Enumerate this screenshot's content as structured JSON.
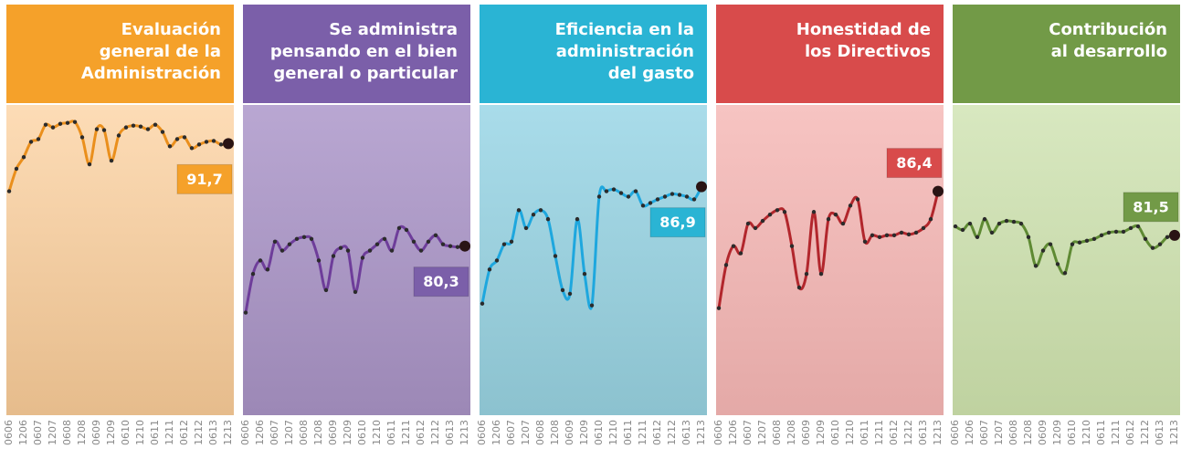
{
  "chart_data": [
    {
      "type": "line",
      "title": [
        "Evaluación",
        "general de la",
        "Administración"
      ],
      "categories": [
        "0606",
        null,
        "1206",
        null,
        "0607",
        null,
        "1207",
        null,
        "0608",
        null,
        "1208",
        null,
        "0609",
        null,
        "1209",
        null,
        "0610",
        null,
        "1210",
        null,
        "0611",
        null,
        "1211",
        null,
        "0612",
        null,
        "1212",
        null,
        "0613",
        null,
        "1213"
      ],
      "values": [
        86.4,
        88.9,
        90.2,
        91.9,
        92.2,
        93.8,
        93.5,
        93.9,
        94.0,
        94.1,
        92.4,
        89.4,
        93.3,
        93.2,
        89.8,
        92.6,
        93.5,
        93.7,
        93.6,
        93.3,
        93.8,
        93.0,
        91.4,
        92.2,
        92.4,
        91.2,
        91.6,
        91.9,
        92.0,
        91.6,
        91.7
      ],
      "value_labels": [
        null,
        null,
        null,
        null,
        null,
        null,
        null,
        null,
        null,
        null,
        null,
        null,
        null,
        null,
        null,
        null,
        null,
        null,
        null,
        null,
        null,
        null,
        null,
        null,
        null,
        null,
        null,
        null,
        null,
        null,
        "91,7"
      ],
      "color": "#ea8f1c",
      "header_color": "#f5a12a",
      "body_colors": [
        "#fddcb6",
        "#e6bc8c"
      ],
      "ylim": [
        62,
        96
      ]
    },
    {
      "type": "line",
      "title": [
        "Se administra",
        "pensando en el bien",
        "general o particular"
      ],
      "categories": [
        "0606",
        null,
        "1206",
        null,
        "0607",
        null,
        "1207",
        null,
        "0608",
        null,
        "1208",
        null,
        "0609",
        null,
        "1209",
        null,
        "0610",
        null,
        "1210",
        null,
        "0611",
        null,
        "1211",
        null,
        "0612",
        null,
        "1212",
        null,
        "0613",
        null,
        "1213"
      ],
      "values": [
        72.9,
        77.2,
        78.7,
        77.7,
        80.8,
        79.8,
        80.5,
        81.1,
        81.3,
        81.1,
        78.7,
        75.4,
        79.2,
        80.1,
        79.8,
        75.2,
        79.0,
        79.8,
        80.5,
        81.1,
        79.8,
        82.3,
        82.1,
        80.8,
        79.8,
        80.8,
        81.5,
        80.5,
        80.3,
        80.2,
        80.3
      ],
      "value_labels": [
        null,
        null,
        null,
        null,
        null,
        null,
        null,
        null,
        null,
        null,
        null,
        null,
        null,
        null,
        null,
        null,
        null,
        null,
        null,
        null,
        null,
        null,
        null,
        null,
        null,
        null,
        null,
        null,
        null,
        null,
        "80,3"
      ],
      "color": "#6e3d9a",
      "header_color": "#7b5fa9",
      "body_colors": [
        "#b9a7d2",
        "#9c88b6"
      ],
      "ylim": [
        62,
        96
      ]
    },
    {
      "type": "line",
      "title": [
        "Eficiencia en la",
        "administración",
        "del gasto"
      ],
      "categories": [
        "0606",
        null,
        "1206",
        null,
        "0607",
        null,
        "1207",
        null,
        "0608",
        null,
        "1208",
        null,
        "0609",
        null,
        "1209",
        null,
        "0610",
        null,
        "1210",
        null,
        "0611",
        null,
        "1211",
        null,
        "0612",
        null,
        "1212",
        null,
        "0613",
        null,
        "1213"
      ],
      "values": [
        73.9,
        77.7,
        78.7,
        80.5,
        80.8,
        84.3,
        82.3,
        83.8,
        84.3,
        83.3,
        79.2,
        75.4,
        75.0,
        83.3,
        77.2,
        73.7,
        85.8,
        86.4,
        86.6,
        86.2,
        85.8,
        86.4,
        84.8,
        85.1,
        85.5,
        85.8,
        86.1,
        86.0,
        85.8,
        85.5,
        86.9
      ],
      "value_labels": [
        null,
        null,
        null,
        null,
        null,
        null,
        null,
        null,
        null,
        null,
        null,
        null,
        null,
        null,
        null,
        null,
        null,
        null,
        null,
        null,
        null,
        null,
        null,
        null,
        null,
        null,
        null,
        null,
        null,
        null,
        "86,9"
      ],
      "color": "#1ea7de",
      "header_color": "#2ab4d4",
      "body_colors": [
        "#a9dcea",
        "#8cc2cf"
      ],
      "ylim": [
        62,
        96
      ]
    },
    {
      "type": "line",
      "title": [
        "Honestidad de",
        "los Directivos"
      ],
      "categories": [
        "0606",
        null,
        "1206",
        null,
        "0607",
        null,
        "1207",
        null,
        "0608",
        null,
        "1208",
        null,
        "0609",
        null,
        "1209",
        null,
        "0610",
        null,
        "1210",
        null,
        "0611",
        null,
        "1211",
        null,
        "0612",
        null,
        "1212",
        null,
        "0613",
        null,
        "1213"
      ],
      "values": [
        73.4,
        78.2,
        80.3,
        79.5,
        82.8,
        82.3,
        83.1,
        83.8,
        84.3,
        84.1,
        80.3,
        75.7,
        77.2,
        84.1,
        77.2,
        83.3,
        83.8,
        82.8,
        84.8,
        85.5,
        80.8,
        81.5,
        81.3,
        81.5,
        81.5,
        81.8,
        81.6,
        81.8,
        82.3,
        83.3,
        86.4
      ],
      "value_labels": [
        null,
        null,
        null,
        null,
        null,
        null,
        null,
        null,
        null,
        null,
        null,
        null,
        null,
        null,
        null,
        null,
        null,
        null,
        null,
        null,
        null,
        null,
        null,
        null,
        null,
        null,
        null,
        null,
        null,
        null,
        "86,4"
      ],
      "color": "#b2262c",
      "header_color": "#d84b4b",
      "body_colors": [
        "#f7c4c2",
        "#e4a9a7"
      ],
      "ylim": [
        62,
        96
      ]
    },
    {
      "type": "line",
      "title": [
        "Contribución",
        "al desarrollo"
      ],
      "categories": [
        "0606",
        null,
        "1206",
        null,
        "0607",
        null,
        "1207",
        null,
        "0608",
        null,
        "1208",
        null,
        "0609",
        null,
        "1209",
        null,
        "0610",
        null,
        "1210",
        null,
        "0611",
        null,
        "1211",
        null,
        "0612",
        null,
        "1212",
        null,
        "0613",
        null,
        "1213"
      ],
      "values": [
        82.5,
        82.1,
        82.8,
        81.3,
        83.3,
        81.8,
        82.8,
        83.1,
        83.0,
        82.8,
        81.3,
        78.1,
        79.8,
        80.5,
        78.3,
        77.3,
        80.5,
        80.7,
        80.9,
        81.1,
        81.5,
        81.8,
        81.9,
        81.9,
        82.3,
        82.5,
        81.1,
        80.1,
        80.5,
        81.3,
        81.5
      ],
      "value_labels": [
        null,
        null,
        null,
        null,
        null,
        null,
        null,
        null,
        null,
        null,
        null,
        null,
        null,
        null,
        null,
        null,
        null,
        null,
        null,
        null,
        null,
        null,
        null,
        null,
        null,
        null,
        null,
        null,
        null,
        null,
        "81,5"
      ],
      "color": "#5e8a33",
      "header_color": "#729a47",
      "body_colors": [
        "#d8e8c0",
        "#bfd2a0"
      ],
      "ylim": [
        62,
        96
      ]
    }
  ]
}
